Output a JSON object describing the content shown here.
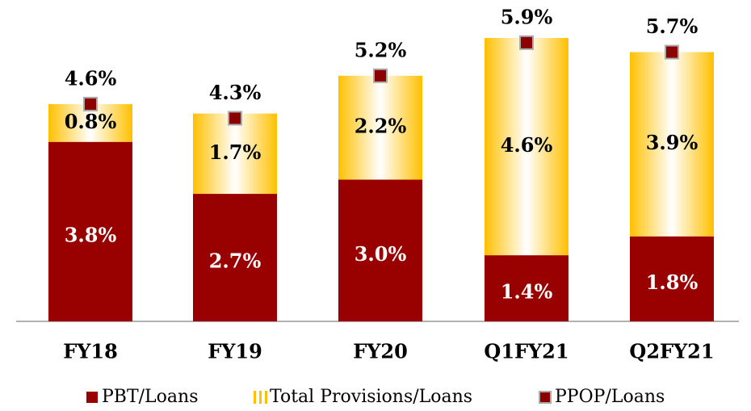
{
  "chart_data": {
    "type": "bar",
    "stacked": true,
    "categories": [
      "FY18",
      "FY19",
      "FY20",
      "Q1FY21",
      "Q2FY21"
    ],
    "series": [
      {
        "name": "PBT/Loans",
        "color": "#990000",
        "values": [
          3.8,
          2.7,
          3.0,
          1.4,
          1.8
        ],
        "value_labels": [
          "3.8%",
          "2.7%",
          "3.0%",
          "1.4%",
          "1.8%"
        ]
      },
      {
        "name": "Total Provisions/Loans",
        "color": "#ffc000",
        "values": [
          0.8,
          1.7,
          2.2,
          4.6,
          3.9
        ],
        "value_labels": [
          "0.8%",
          "1.7%",
          "2.2%",
          "4.6%",
          "3.9%"
        ]
      },
      {
        "name": "PPOP/Loans",
        "type": "marker",
        "color": "#8b0000",
        "values": [
          4.6,
          4.3,
          5.2,
          5.9,
          5.7
        ],
        "value_labels": [
          "4.6%",
          "4.3%",
          "5.2%",
          "5.9%",
          "5.7%"
        ]
      }
    ],
    "legend": "bottom"
  }
}
